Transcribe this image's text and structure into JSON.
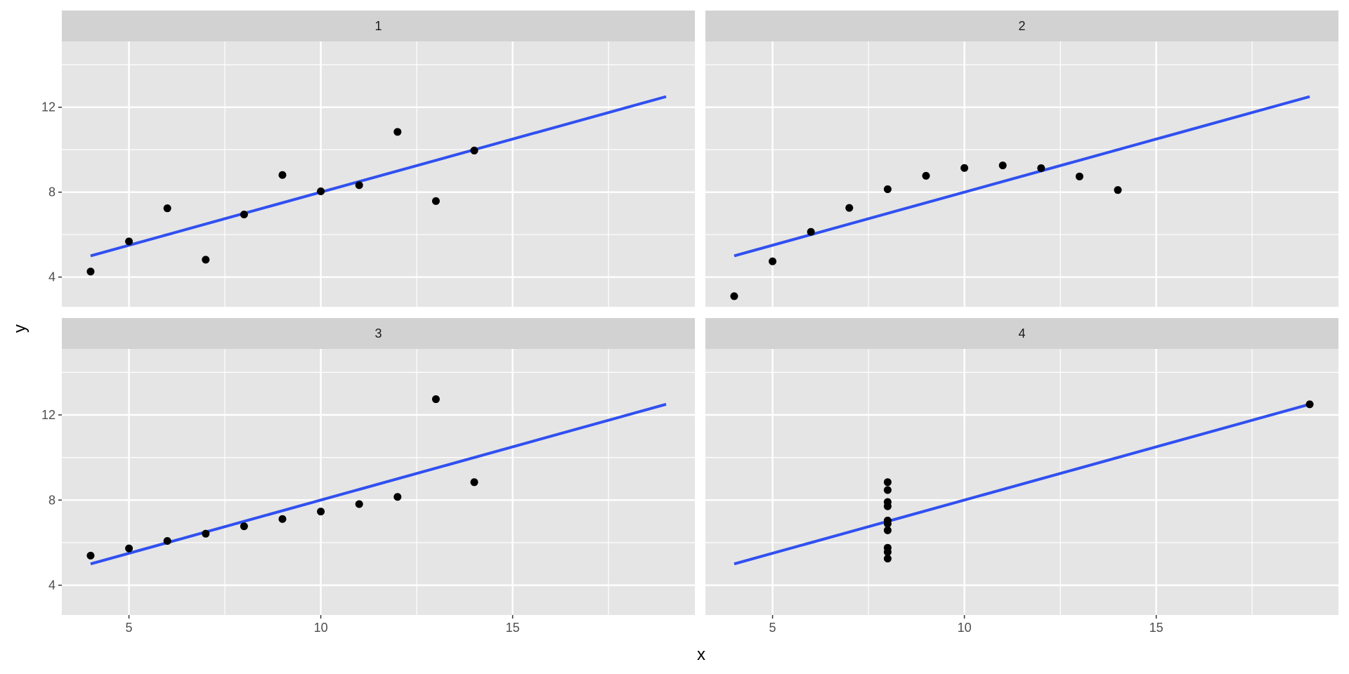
{
  "chart_data": {
    "type": "scatter",
    "xlabel": "x",
    "ylabel": "y",
    "xlim": [
      3.25,
      19.75
    ],
    "ylim": [
      2.6,
      15.1
    ],
    "x_ticks": [
      5,
      10,
      15
    ],
    "y_ticks": [
      4,
      8,
      12
    ],
    "grid": true,
    "fit_line": {
      "x": [
        4,
        19
      ],
      "y": [
        5.0,
        12.5
      ]
    },
    "colors": {
      "panel_background": "#e5e5e5",
      "grid": "#ffffff",
      "strip_background": "#d2d2d2",
      "points": "#000000",
      "fit_line": "#3050f0"
    },
    "facets": [
      {
        "label": "1",
        "x": [
          10,
          8,
          13,
          9,
          11,
          14,
          6,
          4,
          12,
          7,
          5
        ],
        "y": [
          8.04,
          6.95,
          7.58,
          8.81,
          8.33,
          9.96,
          7.24,
          4.26,
          10.84,
          4.82,
          5.68
        ]
      },
      {
        "label": "2",
        "x": [
          10,
          8,
          13,
          9,
          11,
          14,
          6,
          4,
          12,
          7,
          5
        ],
        "y": [
          9.14,
          8.14,
          8.74,
          8.77,
          9.26,
          8.1,
          6.13,
          3.1,
          9.13,
          7.26,
          4.74
        ]
      },
      {
        "label": "3",
        "x": [
          10,
          8,
          13,
          9,
          11,
          14,
          6,
          4,
          12,
          7,
          5
        ],
        "y": [
          7.46,
          6.77,
          12.74,
          7.11,
          7.81,
          8.84,
          6.08,
          5.39,
          8.15,
          6.42,
          5.73
        ]
      },
      {
        "label": "4",
        "x": [
          8,
          8,
          8,
          8,
          8,
          8,
          8,
          19,
          8,
          8,
          8
        ],
        "y": [
          6.58,
          5.76,
          7.71,
          8.84,
          8.47,
          7.04,
          5.25,
          12.5,
          5.56,
          7.91,
          6.89
        ]
      }
    ]
  }
}
